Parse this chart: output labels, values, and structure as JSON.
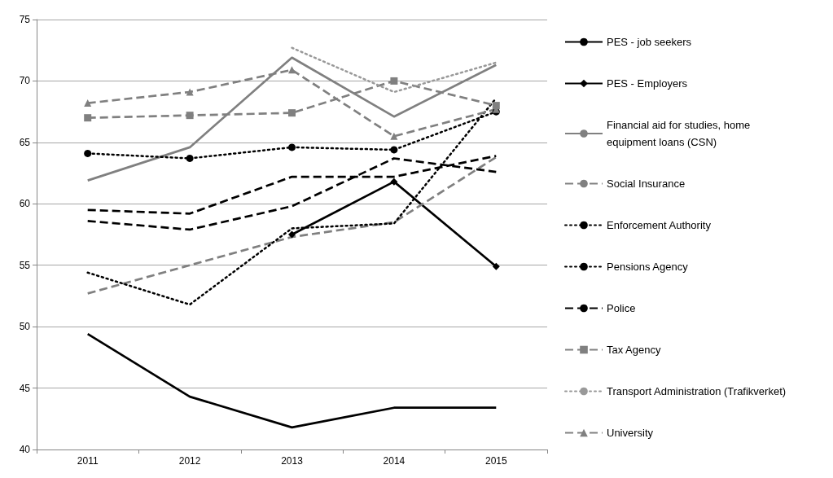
{
  "chart_data": {
    "type": "line",
    "categories": [
      "2011",
      "2012",
      "2013",
      "2014",
      "2015"
    ],
    "ylim": [
      40,
      75
    ],
    "yticks": [
      40,
      45,
      50,
      55,
      60,
      65,
      70,
      75
    ],
    "grid": "y",
    "legend": "right",
    "series": [
      {
        "name": "PES - job seekers",
        "color": "#000000",
        "line_style": "solid",
        "marker": "none",
        "values": [
          49.4,
          44.3,
          41.8,
          43.4,
          43.4
        ]
      },
      {
        "name": "PES - Employers",
        "color": "#000000",
        "line_style": "solid",
        "marker": "diamond",
        "values": [
          null,
          null,
          57.5,
          61.8,
          54.9
        ]
      },
      {
        "name": "Financial aid for studies, home equipment loans (CSN)",
        "color": "#808080",
        "line_style": "solid",
        "marker": "none",
        "values": [
          61.9,
          64.6,
          71.9,
          67.1,
          71.3
        ]
      },
      {
        "name": "Social Insurance",
        "color": "#808080",
        "line_style": "dashed",
        "marker": "none",
        "values": [
          52.7,
          55.0,
          57.3,
          58.5,
          63.8
        ]
      },
      {
        "name": "Enforcement Authority",
        "color": "#000000",
        "line_style": "dotted",
        "marker": "none",
        "values": [
          54.4,
          51.8,
          58.0,
          58.4,
          68.6
        ]
      },
      {
        "name": "Pensions Agency",
        "color": "#000000",
        "line_style": "dotted",
        "marker": "circle",
        "values": [
          64.1,
          63.7,
          64.6,
          64.4,
          67.5
        ]
      },
      {
        "name": "Police",
        "color": "#000000",
        "line_style": "dashed",
        "marker": "none",
        "values": [
          58.6,
          57.9,
          59.8,
          63.7,
          62.6
        ]
      },
      {
        "name": "Tax Agency",
        "color": "#808080",
        "line_style": "dashed",
        "marker": "square",
        "values": [
          67.0,
          67.2,
          67.4,
          70.0,
          68.0
        ]
      },
      {
        "name": "Transport Administration (Trafikverket)",
        "color": "#999999",
        "line_style": "dotted",
        "marker": "none",
        "values": [
          null,
          null,
          72.7,
          69.1,
          71.5
        ]
      },
      {
        "name": "University",
        "color": "#808080",
        "line_style": "dashed",
        "marker": "triangle",
        "values": [
          68.2,
          69.1,
          70.9,
          65.5,
          67.7
        ]
      },
      {
        "color": "#000000",
        "line_style": "dashed",
        "marker": "none",
        "values": [
          59.5,
          59.2,
          62.2,
          62.2,
          63.9
        ]
      }
    ]
  }
}
